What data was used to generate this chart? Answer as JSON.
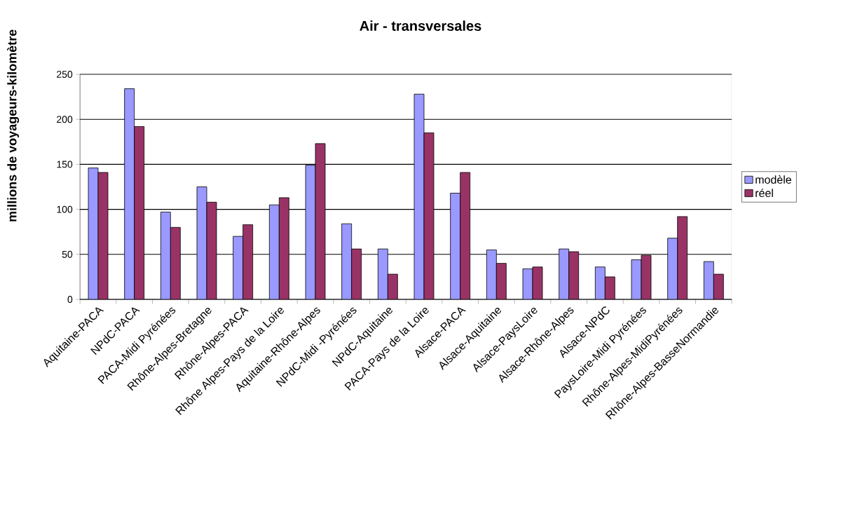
{
  "chart_data": {
    "type": "bar",
    "title": "Air - transversales",
    "ylabel": "millions de voyageurs-kilomètre",
    "categories": [
      "Aquitaine-PACA",
      "NPdC-PACA",
      "PACA-Midi Pyrénées",
      "Rhône-Alpes-Bretagne",
      "Rhône-Alpes-PACA",
      "Rhône Alpes-Pays de la Loire",
      "Aquitaine-Rhône-Alpes",
      "NPdC-Midi -Pyrénées",
      "NPdC-Aquitaine",
      "PACA-Pays de la Loire",
      "Alsace-PACA",
      "Alsace-Aquitaine",
      "Alsace-PaysLoire",
      "Alsace-Rhône-Alpes",
      "Alsace-NPdC",
      "PaysLoire-Midi Pyrénées",
      "Rhône-Alpes-MidiPyrénées",
      "Rhône-Alpes-BasseNormandie"
    ],
    "series": [
      {
        "name": "modèle",
        "color": "#9999ff",
        "values": [
          146,
          234,
          97,
          125,
          70,
          105,
          149,
          84,
          56,
          228,
          118,
          55,
          34,
          56,
          36,
          44,
          68,
          42
        ]
      },
      {
        "name": "réel",
        "color": "#993366",
        "values": [
          141,
          192,
          80,
          108,
          83,
          113,
          173,
          56,
          28,
          185,
          141,
          40,
          36,
          53,
          25,
          49,
          92,
          28
        ]
      }
    ],
    "ylim": [
      0,
      250
    ],
    "yticks": [
      0,
      50,
      100,
      150,
      200,
      250
    ],
    "grid": "y",
    "legend": "right"
  }
}
